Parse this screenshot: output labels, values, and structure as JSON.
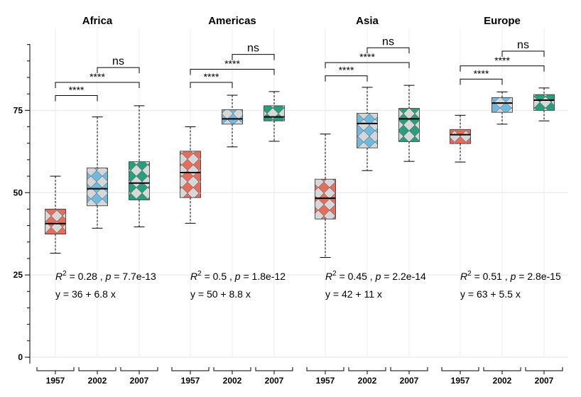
{
  "chart_data": {
    "type": "boxplot",
    "y_axis": {
      "ylim": [
        0,
        95
      ],
      "ticks": [
        0,
        25,
        50,
        75
      ]
    },
    "colors": {
      "1957": "#e26d5c",
      "2002": "#6fb8de",
      "2007": "#2a9d7c",
      "pattern_light": "#d7d7d7"
    },
    "facets": [
      {
        "title": "Africa",
        "categories": [
          "1957",
          "2002",
          "2007"
        ],
        "boxes": [
          {
            "year": "1957",
            "min": 31.6,
            "q1": 37.4,
            "median": 40.6,
            "q3": 45.0,
            "max": 55.0
          },
          {
            "year": "2002",
            "min": 39.2,
            "q1": 46.0,
            "median": 51.2,
            "q3": 57.5,
            "max": 73.0
          },
          {
            "year": "2007",
            "min": 39.6,
            "q1": 47.8,
            "median": 52.9,
            "q3": 59.4,
            "max": 76.4
          }
        ],
        "comparisons": [
          {
            "from": "1957",
            "to": "2002",
            "label": "****",
            "y": 79.5
          },
          {
            "from": "1957",
            "to": "2007",
            "label": "****",
            "y": 83.5
          },
          {
            "from": "2002",
            "to": "2007",
            "label": "ns",
            "y": 88.0
          }
        ],
        "stats": {
          "r2": "0.28",
          "p": "7.7e-13",
          "equation": "y = 36 + 6.8 x"
        }
      },
      {
        "title": "Americas",
        "categories": [
          "1957",
          "2002",
          "2007"
        ],
        "boxes": [
          {
            "year": "1957",
            "min": 40.7,
            "q1": 48.5,
            "median": 56.1,
            "q3": 62.6,
            "max": 70.0
          },
          {
            "year": "2002",
            "min": 63.9,
            "q1": 70.8,
            "median": 72.4,
            "q3": 75.2,
            "max": 79.6
          },
          {
            "year": "2007",
            "min": 65.6,
            "q1": 71.8,
            "median": 73.0,
            "q3": 76.4,
            "max": 80.7
          }
        ],
        "comparisons": [
          {
            "from": "1957",
            "to": "2002",
            "label": "****",
            "y": 83.5
          },
          {
            "from": "1957",
            "to": "2007",
            "label": "****",
            "y": 87.5
          },
          {
            "from": "2002",
            "to": "2007",
            "label": "ns",
            "y": 92.0
          }
        ],
        "stats": {
          "r2": "0.5",
          "p": "1.8e-12",
          "equation": "y = 50 + 8.8 x"
        }
      },
      {
        "title": "Asia",
        "categories": [
          "1957",
          "2002",
          "2007"
        ],
        "boxes": [
          {
            "year": "1957",
            "min": 30.3,
            "q1": 42.0,
            "median": 48.3,
            "q3": 54.1,
            "max": 67.8
          },
          {
            "year": "2002",
            "min": 56.7,
            "q1": 63.6,
            "median": 71.0,
            "q3": 74.1,
            "max": 82.0
          },
          {
            "year": "2007",
            "min": 59.5,
            "q1": 65.5,
            "median": 72.4,
            "q3": 75.6,
            "max": 82.6
          }
        ],
        "comparisons": [
          {
            "from": "1957",
            "to": "2002",
            "label": "****",
            "y": 85.5
          },
          {
            "from": "1957",
            "to": "2007",
            "label": "****",
            "y": 89.5
          },
          {
            "from": "2002",
            "to": "2007",
            "label": "ns",
            "y": 94.0
          }
        ],
        "stats": {
          "r2": "0.45",
          "p": "2.2e-14",
          "equation": "y = 42 + 11 x"
        }
      },
      {
        "title": "Europe",
        "categories": [
          "1957",
          "2002",
          "2007"
        ],
        "boxes": [
          {
            "year": "1957",
            "min": 59.3,
            "q1": 64.9,
            "median": 67.6,
            "q3": 69.2,
            "max": 73.5
          },
          {
            "year": "2002",
            "min": 70.8,
            "q1": 74.4,
            "median": 77.2,
            "q3": 78.9,
            "max": 80.6
          },
          {
            "year": "2007",
            "min": 71.8,
            "q1": 75.0,
            "median": 78.1,
            "q3": 79.8,
            "max": 81.8
          }
        ],
        "comparisons": [
          {
            "from": "1957",
            "to": "2002",
            "label": "****",
            "y": 84.5
          },
          {
            "from": "1957",
            "to": "2007",
            "label": "****",
            "y": 88.5
          },
          {
            "from": "2002",
            "to": "2007",
            "label": "ns",
            "y": 93.0
          }
        ],
        "stats": {
          "r2": "0.51",
          "p": "2.8e-15",
          "equation": "y = 63 + 5.5 x"
        }
      }
    ]
  }
}
